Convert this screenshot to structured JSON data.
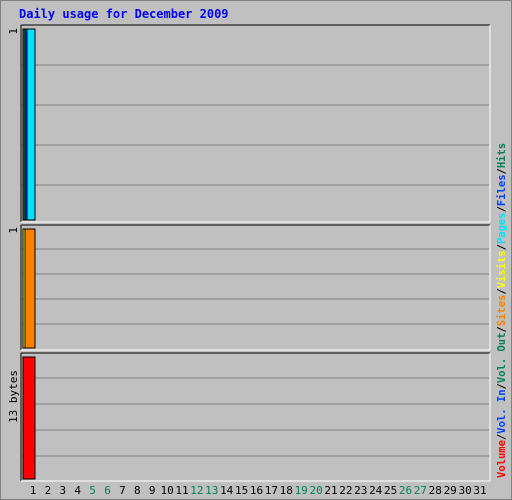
{
  "title": "Daily usage for December 2009",
  "colors": {
    "background": "#c0c0c0",
    "title": "#0000ff",
    "grid": "#808080",
    "axis_text": "#000000",
    "weekend_text": "#00805c",
    "hits": "#00805c",
    "files": "#0040ff",
    "pages": "#00e0ff",
    "visits": "#ffff00",
    "sites": "#ff8000",
    "kbytes_out": "#00805c",
    "kbytes_in": "#0040ff",
    "volume": "#ff0000"
  },
  "chart_data": [
    {
      "type": "bar",
      "panel": "hits-files-pages",
      "y_max_label": "1",
      "ylim": [
        0,
        1
      ],
      "grid": true,
      "categories": [
        "1",
        "2",
        "3",
        "4",
        "5",
        "6",
        "7",
        "8",
        "9",
        "10",
        "11",
        "12",
        "13",
        "14",
        "15",
        "16",
        "17",
        "18",
        "19",
        "20",
        "21",
        "22",
        "23",
        "24",
        "25",
        "26",
        "27",
        "28",
        "29",
        "30",
        "31"
      ],
      "weekend_days": [
        "5",
        "6",
        "12",
        "13",
        "19",
        "20",
        "26",
        "27"
      ],
      "series": [
        {
          "name": "Hits",
          "color": "#00805c",
          "values": [
            1,
            0,
            0,
            0,
            0,
            0,
            0,
            0,
            0,
            0,
            0,
            0,
            0,
            0,
            0,
            0,
            0,
            0,
            0,
            0,
            0,
            0,
            0,
            0,
            0,
            0,
            0,
            0,
            0,
            0,
            0
          ]
        },
        {
          "name": "Files",
          "color": "#0040ff",
          "values": [
            1,
            0,
            0,
            0,
            0,
            0,
            0,
            0,
            0,
            0,
            0,
            0,
            0,
            0,
            0,
            0,
            0,
            0,
            0,
            0,
            0,
            0,
            0,
            0,
            0,
            0,
            0,
            0,
            0,
            0,
            0
          ]
        },
        {
          "name": "Pages",
          "color": "#00e0ff",
          "values": [
            1,
            0,
            0,
            0,
            0,
            0,
            0,
            0,
            0,
            0,
            0,
            0,
            0,
            0,
            0,
            0,
            0,
            0,
            0,
            0,
            0,
            0,
            0,
            0,
            0,
            0,
            0,
            0,
            0,
            0,
            0
          ]
        }
      ]
    },
    {
      "type": "bar",
      "panel": "visits-sites",
      "y_max_label": "1",
      "ylim": [
        0,
        1
      ],
      "grid": true,
      "series": [
        {
          "name": "Visits",
          "color": "#ffff00",
          "values": [
            1,
            0,
            0,
            0,
            0,
            0,
            0,
            0,
            0,
            0,
            0,
            0,
            0,
            0,
            0,
            0,
            0,
            0,
            0,
            0,
            0,
            0,
            0,
            0,
            0,
            0,
            0,
            0,
            0,
            0,
            0
          ]
        },
        {
          "name": "Sites",
          "color": "#ff8000",
          "values": [
            1,
            0,
            0,
            0,
            0,
            0,
            0,
            0,
            0,
            0,
            0,
            0,
            0,
            0,
            0,
            0,
            0,
            0,
            0,
            0,
            0,
            0,
            0,
            0,
            0,
            0,
            0,
            0,
            0,
            0,
            0
          ]
        }
      ]
    },
    {
      "type": "bar",
      "panel": "volume",
      "y_max_label": "13 bytes",
      "ylim": [
        0,
        13
      ],
      "grid": true,
      "series": [
        {
          "name": "Volume",
          "color": "#ff0000",
          "values": [
            13,
            0,
            0,
            0,
            0,
            0,
            0,
            0,
            0,
            0,
            0,
            0,
            0,
            0,
            0,
            0,
            0,
            0,
            0,
            0,
            0,
            0,
            0,
            0,
            0,
            0,
            0,
            0,
            0,
            0,
            0
          ]
        }
      ]
    }
  ],
  "legend": [
    {
      "text": "Volume",
      "color": "#ff0000"
    },
    {
      "text": "/",
      "color": "#000000"
    },
    {
      "text": "Vol. In",
      "color": "#0040ff"
    },
    {
      "text": "/",
      "color": "#000000"
    },
    {
      "text": "Vol. Out",
      "color": "#00805c"
    },
    {
      "text": "/",
      "color": "#000000"
    },
    {
      "text": "Sites",
      "color": "#ff8000"
    },
    {
      "text": "/",
      "color": "#000000"
    },
    {
      "text": "Visits",
      "color": "#ffff00"
    },
    {
      "text": "/",
      "color": "#000000"
    },
    {
      "text": "Pages",
      "color": "#00e0ff"
    },
    {
      "text": "/",
      "color": "#000000"
    },
    {
      "text": "Files",
      "color": "#0040ff"
    },
    {
      "text": "/",
      "color": "#000000"
    },
    {
      "text": "Hits",
      "color": "#00805c"
    }
  ]
}
